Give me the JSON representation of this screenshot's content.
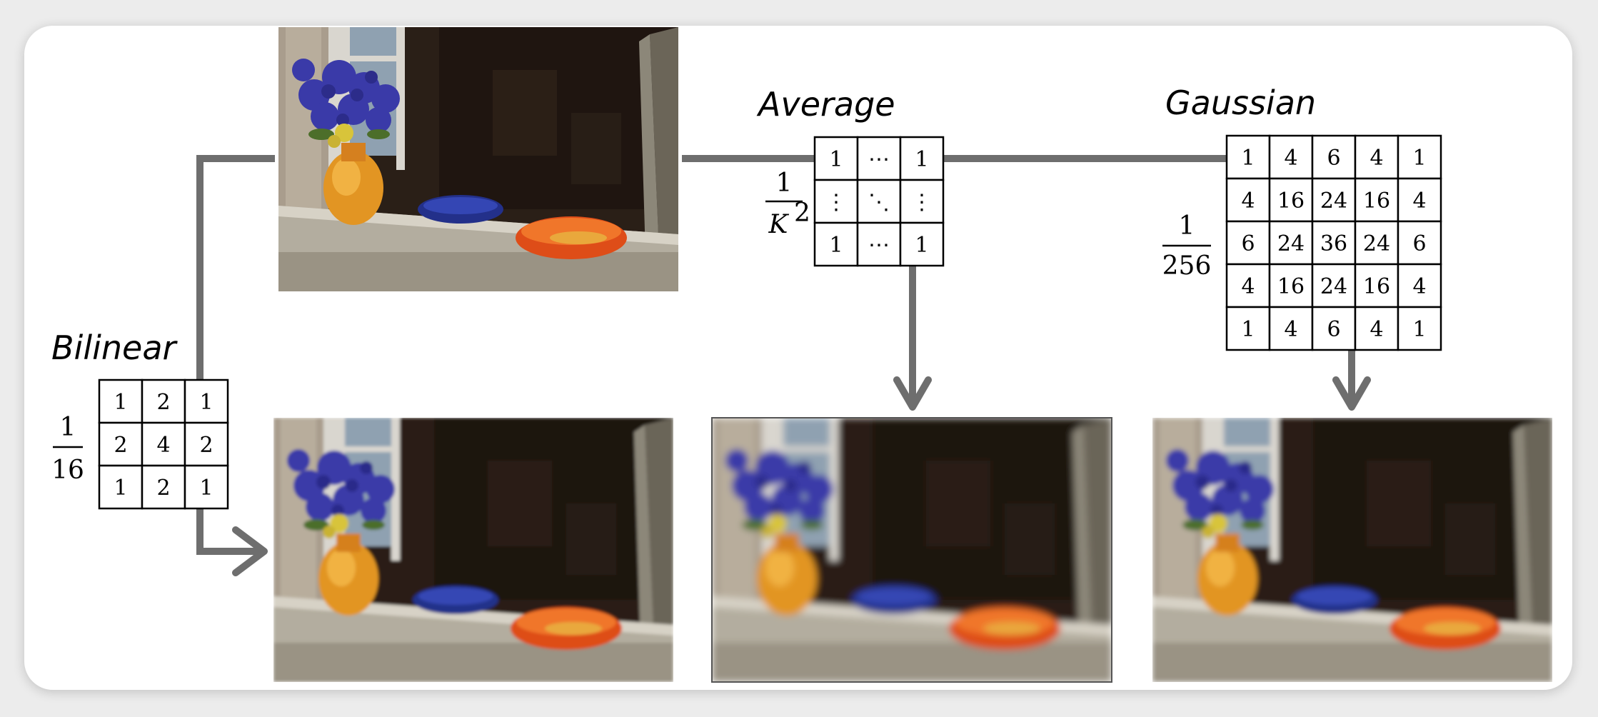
{
  "labels": {
    "bilinear": "Bilinear",
    "average": "Average",
    "gaussian": "Gaussian"
  },
  "bilinear_kernel": {
    "numerator": "1",
    "denominator": "16",
    "rows": [
      [
        "1",
        "2",
        "1"
      ],
      [
        "2",
        "4",
        "2"
      ],
      [
        "1",
        "2",
        "1"
      ]
    ]
  },
  "average_kernel": {
    "numerator": "1",
    "denominator": "K",
    "exponent": "2",
    "rows": [
      [
        "1",
        "⋯",
        "1"
      ],
      [
        "⋮",
        "⋱",
        "⋮"
      ],
      [
        "1",
        "⋯",
        "1"
      ]
    ]
  },
  "gaussian_kernel": {
    "numerator": "1",
    "denominator": "256",
    "rows": [
      [
        "1",
        "4",
        "6",
        "4",
        "1"
      ],
      [
        "4",
        "16",
        "24",
        "16",
        "4"
      ],
      [
        "6",
        "24",
        "36",
        "24",
        "6"
      ],
      [
        "4",
        "16",
        "24",
        "16",
        "4"
      ],
      [
        "1",
        "4",
        "6",
        "4",
        "1"
      ]
    ]
  },
  "colors": {
    "arrow": "#6e6e6e",
    "grid": "#000000",
    "background": "#ececec"
  }
}
